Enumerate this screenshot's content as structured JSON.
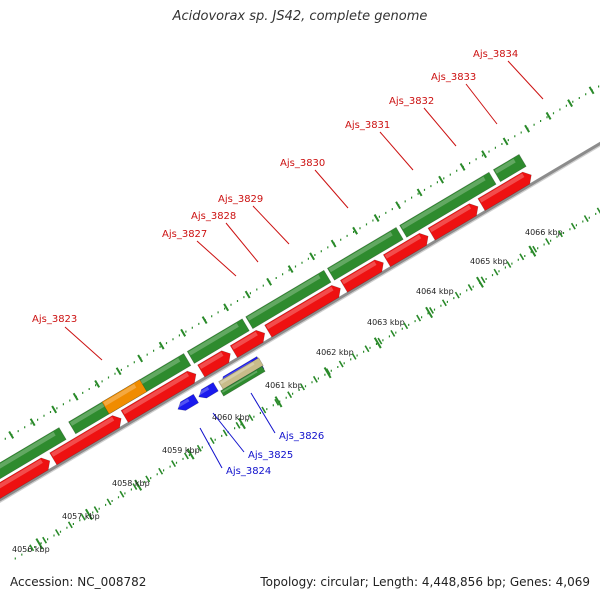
{
  "title": "Acidovorax sp. JS42, complete genome",
  "footer": {
    "accession": "Accession: NC_008782",
    "summary": "Topology: circular; Length: 4,448,856 bp; Genes: 4,069"
  },
  "colors": {
    "backbone": "#8c8c8c",
    "dots": "#2a8a2a",
    "cds": "#2e8b2e",
    "cds_pos": "#ee1111",
    "cds_neg": "#1a1aee",
    "rna": "#f08c00",
    "other": "#c8bc8a",
    "label_pos": "#cc1111",
    "label_neg": "#1111cc"
  },
  "kbp_labels": [
    "4056 kbp",
    "4057 kbp",
    "4058 kbp",
    "4059 kbp",
    "4060 kbp",
    "4061 kbp",
    "4062 kbp",
    "4063 kbp",
    "4064 kbp",
    "4065 kbp",
    "4066 kbp"
  ],
  "genes": [
    {
      "name": "Ajs_3823",
      "strand": "+"
    },
    {
      "name": "Ajs_3824",
      "strand": "-"
    },
    {
      "name": "Ajs_3825",
      "strand": "-"
    },
    {
      "name": "Ajs_3826",
      "strand": "-"
    },
    {
      "name": "Ajs_3827",
      "strand": "+"
    },
    {
      "name": "Ajs_3828",
      "strand": "+"
    },
    {
      "name": "Ajs_3829",
      "strand": "+"
    },
    {
      "name": "Ajs_3830",
      "strand": "+"
    },
    {
      "name": "Ajs_3831",
      "strand": "+"
    },
    {
      "name": "Ajs_3832",
      "strand": "+"
    },
    {
      "name": "Ajs_3833",
      "strand": "+"
    },
    {
      "name": "Ajs_3834",
      "strand": "+"
    }
  ]
}
